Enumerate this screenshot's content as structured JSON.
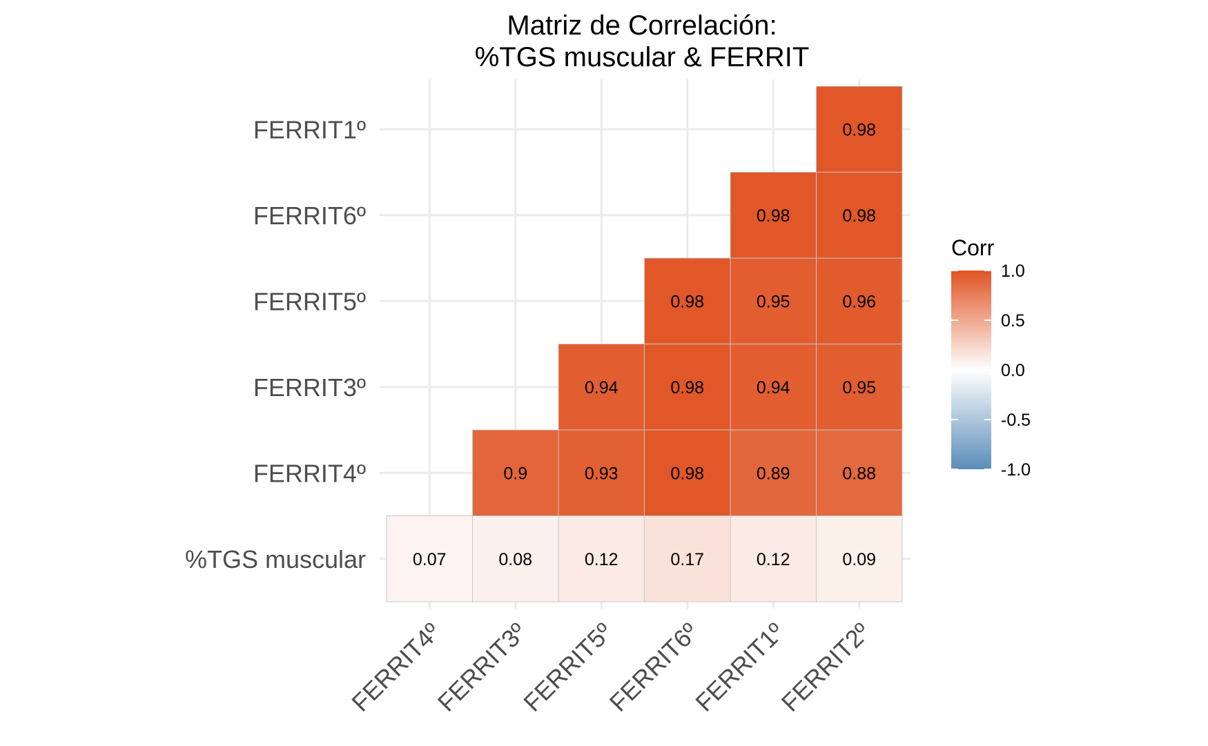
{
  "chart_data": {
    "type": "heatmap",
    "title_lines": [
      "Matriz de Correlación:",
      "%TGS muscular & FERRIT"
    ],
    "x_categories": [
      "FERRIT4º",
      "FERRIT3º",
      "FERRIT5º",
      "FERRIT6º",
      "FERRIT1º",
      "FERRIT2º"
    ],
    "y_categories": [
      "%TGS muscular",
      "FERRIT4º",
      "FERRIT3º",
      "FERRIT5º",
      "FERRIT6º",
      "FERRIT1º"
    ],
    "cells": [
      {
        "x": "FERRIT4º",
        "y": "%TGS muscular",
        "value": 0.07,
        "label": "0.07"
      },
      {
        "x": "FERRIT3º",
        "y": "%TGS muscular",
        "value": 0.08,
        "label": "0.08"
      },
      {
        "x": "FERRIT5º",
        "y": "%TGS muscular",
        "value": 0.12,
        "label": "0.12"
      },
      {
        "x": "FERRIT6º",
        "y": "%TGS muscular",
        "value": 0.17,
        "label": "0.17"
      },
      {
        "x": "FERRIT1º",
        "y": "%TGS muscular",
        "value": 0.12,
        "label": "0.12"
      },
      {
        "x": "FERRIT2º",
        "y": "%TGS muscular",
        "value": 0.09,
        "label": "0.09"
      },
      {
        "x": "FERRIT3º",
        "y": "FERRIT4º",
        "value": 0.9,
        "label": "0.9"
      },
      {
        "x": "FERRIT5º",
        "y": "FERRIT4º",
        "value": 0.93,
        "label": "0.93"
      },
      {
        "x": "FERRIT6º",
        "y": "FERRIT4º",
        "value": 0.98,
        "label": "0.98"
      },
      {
        "x": "FERRIT1º",
        "y": "FERRIT4º",
        "value": 0.89,
        "label": "0.89"
      },
      {
        "x": "FERRIT2º",
        "y": "FERRIT4º",
        "value": 0.88,
        "label": "0.88"
      },
      {
        "x": "FERRIT5º",
        "y": "FERRIT3º",
        "value": 0.94,
        "label": "0.94"
      },
      {
        "x": "FERRIT6º",
        "y": "FERRIT3º",
        "value": 0.98,
        "label": "0.98"
      },
      {
        "x": "FERRIT1º",
        "y": "FERRIT3º",
        "value": 0.94,
        "label": "0.94"
      },
      {
        "x": "FERRIT2º",
        "y": "FERRIT3º",
        "value": 0.95,
        "label": "0.95"
      },
      {
        "x": "FERRIT6º",
        "y": "FERRIT5º",
        "value": 0.98,
        "label": "0.98"
      },
      {
        "x": "FERRIT1º",
        "y": "FERRIT5º",
        "value": 0.95,
        "label": "0.95"
      },
      {
        "x": "FERRIT2º",
        "y": "FERRIT5º",
        "value": 0.96,
        "label": "0.96"
      },
      {
        "x": "FERRIT1º",
        "y": "FERRIT6º",
        "value": 0.98,
        "label": "0.98"
      },
      {
        "x": "FERRIT2º",
        "y": "FERRIT6º",
        "value": 0.98,
        "label": "0.98"
      },
      {
        "x": "FERRIT2º",
        "y": "FERRIT1º",
        "value": 0.98,
        "label": "0.98"
      }
    ],
    "legend": {
      "title": "Corr",
      "position": "right",
      "range": [
        -1,
        1
      ],
      "ticks": [
        1.0,
        0.5,
        0.0,
        -0.5,
        -1.0
      ],
      "tick_labels": [
        "1.0",
        "0.5",
        "0.0",
        "-0.5",
        "-1.0"
      ]
    },
    "colors": {
      "low": "#5b8db8",
      "mid": "#ffffff",
      "high": "#e05424",
      "grid": "#ebebeb",
      "cell_border": "#c8c8c8"
    },
    "grid": true
  }
}
